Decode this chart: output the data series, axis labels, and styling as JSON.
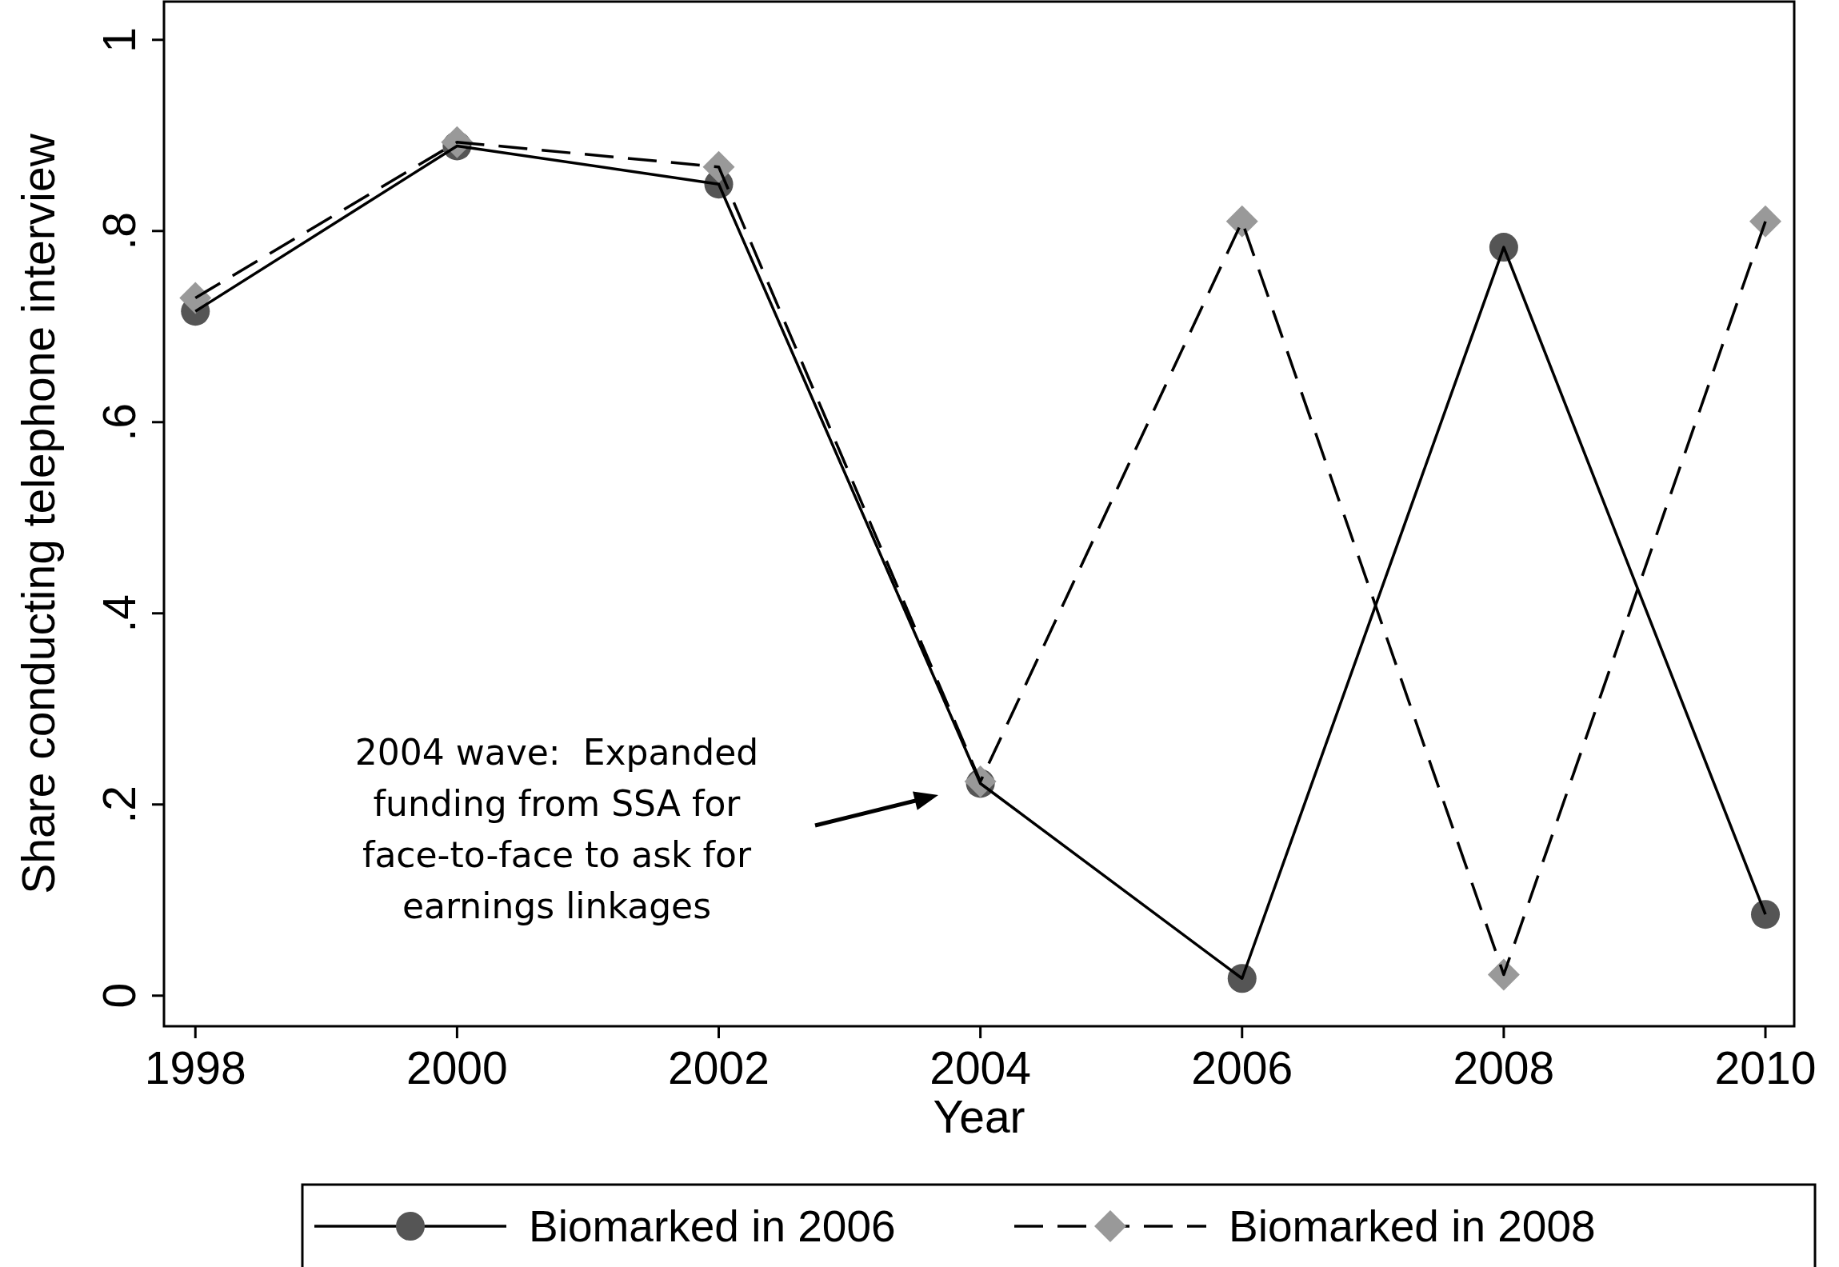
{
  "chart_data": {
    "type": "line",
    "xlabel": "Year",
    "ylabel": "Share conducting telephone interview",
    "x": [
      1998,
      2000,
      2002,
      2004,
      2006,
      2008,
      2010
    ],
    "series": [
      {
        "name": "Biomarked in 2006",
        "color": "#555555",
        "marker": "circle",
        "line_style": "solid",
        "values": [
          0.716,
          0.889,
          0.849,
          0.222,
          0.018,
          0.783,
          0.085
        ]
      },
      {
        "name": "Biomarked in 2008",
        "color": "#999999",
        "marker": "diamond",
        "line_style": "dashed",
        "values": [
          0.73,
          0.893,
          0.867,
          0.224,
          0.81,
          0.022,
          0.81
        ]
      }
    ],
    "xlim": [
      1997.76,
      2010.22
    ],
    "xticks": [
      1998,
      2000,
      2002,
      2004,
      2006,
      2008,
      2010
    ],
    "ylim": [
      -0.032,
      1.04
    ],
    "yticks": [
      0,
      {
        "value": 0.2,
        "label": ".2"
      },
      {
        "value": 0.4,
        "label": ".4"
      },
      {
        "value": 0.6,
        "label": ".6"
      },
      {
        "value": 0.8,
        "label": ".8"
      },
      1
    ],
    "grid": false,
    "legend": "bottom",
    "annotations": [
      "2004 wave:  Expanded\nfunding from SSA for\nface-to-face to ask for\nearnings linkages"
    ]
  }
}
